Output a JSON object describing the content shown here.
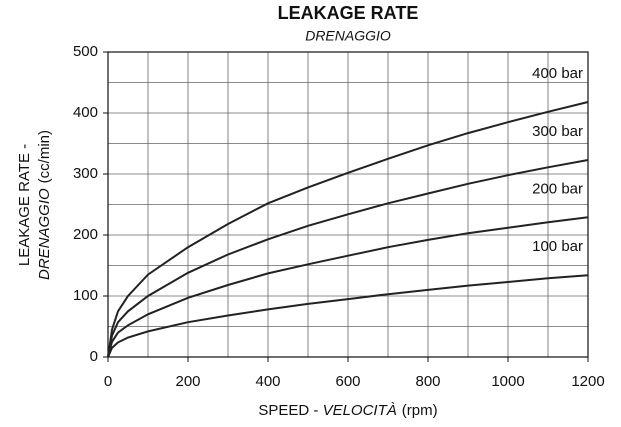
{
  "chart_data": {
    "type": "line",
    "title": "LEAKAGE RATE",
    "subtitle": "DRENAGGIO",
    "xlabel": {
      "plain": "SPEED - ",
      "italic": "VELOCITÀ",
      "unit": "(rpm)"
    },
    "ylabel": {
      "line1": "LEAKAGE RATE -",
      "italic": "DRENAGGIO",
      "unit": "(cc/min)"
    },
    "x": [
      0,
      10,
      25,
      50,
      100,
      200,
      300,
      400,
      500,
      600,
      700,
      800,
      900,
      1000,
      1100,
      1200
    ],
    "series": [
      {
        "name": "400 bar",
        "color": "#222222",
        "values": [
          0,
          45,
          75,
          100,
          135,
          180,
          218,
          252,
          278,
          302,
          325,
          347,
          367,
          385,
          402,
          418
        ]
      },
      {
        "name": "300 bar",
        "color": "#222222",
        "values": [
          0,
          35,
          57,
          75,
          100,
          138,
          168,
          193,
          215,
          234,
          252,
          268,
          284,
          298,
          311,
          323
        ]
      },
      {
        "name": "200 bar",
        "color": "#222222",
        "values": [
          0,
          25,
          40,
          52,
          70,
          97,
          118,
          137,
          152,
          166,
          180,
          192,
          203,
          212,
          221,
          229
        ]
      },
      {
        "name": "100 bar",
        "color": "#222222",
        "values": [
          0,
          15,
          24,
          32,
          42,
          57,
          68,
          78,
          87,
          95,
          103,
          110,
          117,
          123,
          129,
          134
        ]
      }
    ],
    "xlim": [
      0,
      1200
    ],
    "xticks": [
      0,
      200,
      400,
      600,
      800,
      1000,
      1200
    ],
    "ylim": [
      0,
      500
    ],
    "yticks": [
      0,
      100,
      200,
      300,
      400,
      500
    ],
    "grid": true,
    "minor_grid": true
  }
}
